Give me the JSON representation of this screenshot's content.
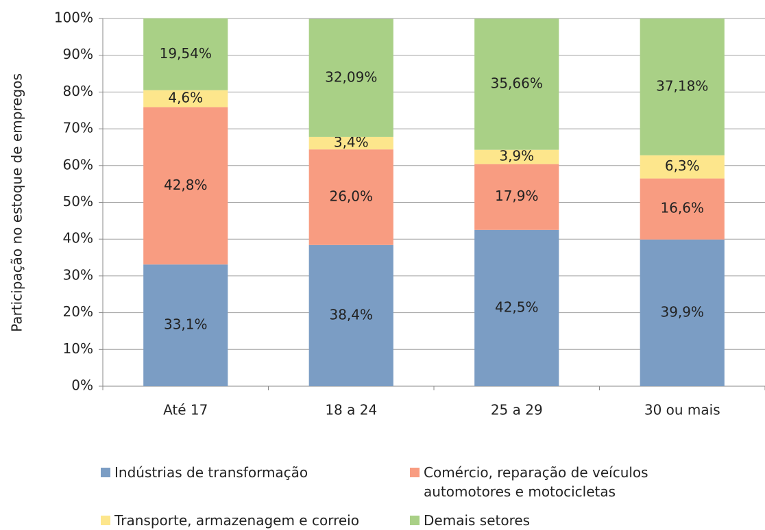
{
  "chart_data": {
    "type": "stacked_bar",
    "ylabel": "Participação no estoque de empregos",
    "categories": [
      "Até 17",
      "18 a 24",
      "25 a 29",
      "30 ou mais"
    ],
    "series": [
      {
        "name": "Indústrias de transformação",
        "color": "#7b9dc4",
        "values": [
          33.1,
          38.4,
          42.5,
          39.9
        ],
        "value_labels": [
          "33,1%",
          "38,4%",
          "42,5%",
          "39,9%"
        ]
      },
      {
        "name": "Comércio, reparação de veículos automotores e motocicletas",
        "color": "#f89c81",
        "values": [
          42.8,
          26.0,
          17.9,
          16.6
        ],
        "value_labels": [
          "42,8%",
          "26,0%",
          "17,9%",
          "16,6%"
        ]
      },
      {
        "name": "Transporte, armazenagem e correio",
        "color": "#fde68c",
        "values": [
          4.6,
          3.4,
          3.9,
          6.3
        ],
        "value_labels": [
          "4,6%",
          "3,4%",
          "3,9%",
          "6,3%"
        ]
      },
      {
        "name": "Demais setores",
        "color": "#a9d086",
        "values": [
          19.54,
          32.09,
          35.66,
          37.18
        ],
        "value_labels": [
          "19,54%",
          "32,09%",
          "35,66%",
          "37,18%"
        ]
      }
    ],
    "ylim": [
      0,
      100
    ],
    "yticks": [
      {
        "value": 0,
        "label": "0%"
      },
      {
        "value": 10,
        "label": "10%"
      },
      {
        "value": 20,
        "label": "20%"
      },
      {
        "value": 30,
        "label": "30%"
      },
      {
        "value": 40,
        "label": "40%"
      },
      {
        "value": 50,
        "label": "50%"
      },
      {
        "value": 60,
        "label": "60%"
      },
      {
        "value": 70,
        "label": "70%"
      },
      {
        "value": 80,
        "label": "80%"
      },
      {
        "value": 90,
        "label": "90%"
      },
      {
        "value": 100,
        "label": "100%"
      }
    ],
    "grid": true
  }
}
